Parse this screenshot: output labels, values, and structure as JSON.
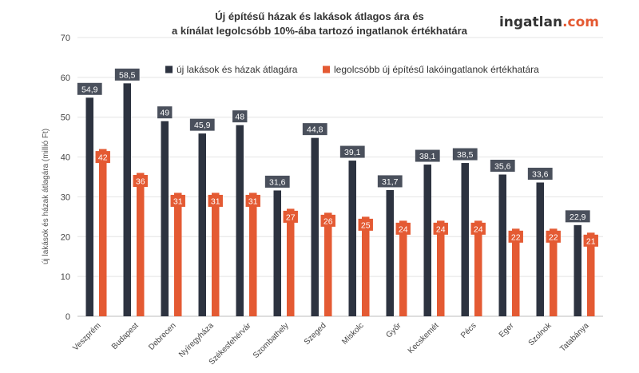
{
  "chart_data": {
    "type": "bar",
    "title_lines": [
      "Új építésű házak és lakások átlagos ára és",
      "a kínálat legolcsóbb 10%-ába tartozó ingatlanok értékhatára"
    ],
    "brand": {
      "name": "ingatlan",
      "suffix": ".com",
      "color_name": "#333333",
      "color_suffix": "#e45a33"
    },
    "ylabel": "új lakások és házak átlagára (millió Ft)",
    "xlabel": "",
    "ylim": [
      0,
      70
    ],
    "yticks": [
      0,
      10,
      20,
      30,
      40,
      50,
      60,
      70
    ],
    "grid": true,
    "legend_position": "top-right",
    "categories": [
      "Veszprém",
      "Budapest",
      "Debrecen",
      "Nyíregyháza",
      "Székesfehérvár",
      "Szombathely",
      "Szeged",
      "Miskolc",
      "Győr",
      "Kecskemét",
      "Pécs",
      "Eger",
      "Szolnok",
      "Tatabánya"
    ],
    "series": [
      {
        "name": "új lakások és házak átlagára",
        "color": "#2d3340",
        "label_color": "#4a505c",
        "values": [
          54.9,
          58.5,
          49,
          45.9,
          48,
          31.6,
          44.8,
          39.1,
          31.7,
          38.1,
          38.5,
          35.6,
          33.6,
          22.9
        ],
        "labels": [
          "54,9",
          "58,5",
          "49",
          "45,9",
          "48",
          "31,6",
          "44,8",
          "39,1",
          "31,7",
          "38,1",
          "38,5",
          "35,6",
          "33,6",
          "22,9"
        ]
      },
      {
        "name": "legolcsóbb új építésű lakóingatlanok értékhatára",
        "color": "#e45a33",
        "label_color": "#e45a33",
        "values": [
          42,
          36,
          31,
          31,
          31,
          27,
          26,
          25,
          24,
          24,
          24,
          22,
          22,
          21
        ],
        "labels": [
          "42",
          "36",
          "31",
          "31",
          "31",
          "27",
          "26",
          "25",
          "24",
          "24",
          "24",
          "22",
          "22",
          "21"
        ]
      }
    ]
  }
}
